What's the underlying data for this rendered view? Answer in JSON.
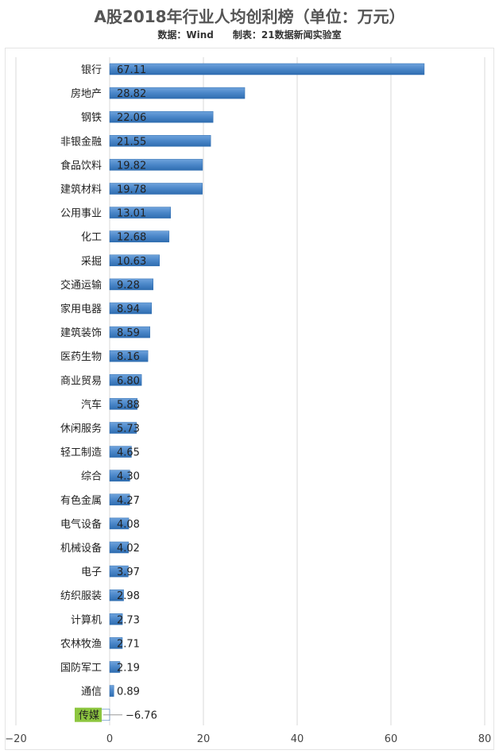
{
  "title": "A股2018年行业人均创利榜（单位：万元）",
  "subtitle": "数据：Wind　　制表：21数据新闻实验室",
  "colors": {
    "bar": "#4a86c8",
    "bar_highlight": "#8dc63f",
    "grid": "#d9d9d9"
  },
  "chart_data": {
    "type": "bar",
    "orientation": "horizontal",
    "title": "A股2018年行业人均创利榜（单位：万元）",
    "xlabel": "",
    "ylabel": "",
    "xlim": [
      -20,
      80
    ],
    "xticks": [
      -20,
      0,
      20,
      40,
      60,
      80
    ],
    "grid": true,
    "categories": [
      "银行",
      "房地产",
      "钢铁",
      "非银金融",
      "食品饮料",
      "建筑材料",
      "公用事业",
      "化工",
      "采掘",
      "交通运输",
      "家用电器",
      "建筑装饰",
      "医药生物",
      "商业贸易",
      "汽车",
      "休闲服务",
      "轻工制造",
      "综合",
      "有色金属",
      "电气设备",
      "机械设备",
      "电子",
      "纺织服装",
      "计算机",
      "农林牧渔",
      "国防军工",
      "通信",
      "传媒"
    ],
    "values": [
      67.11,
      28.82,
      22.06,
      21.55,
      19.82,
      19.78,
      13.01,
      12.68,
      10.63,
      9.28,
      8.94,
      8.59,
      8.16,
      6.8,
      5.88,
      5.73,
      4.65,
      4.3,
      4.27,
      4.08,
      4.02,
      3.97,
      2.98,
      2.73,
      2.71,
      2.19,
      0.89,
      -6.76
    ],
    "value_labels": [
      "67.11",
      "28.82",
      "22.06",
      "21.55",
      "19.82",
      "19.78",
      "13.01",
      "12.68",
      "10.63",
      "9.28",
      "8.94",
      "8.59",
      "8.16",
      "6.80",
      "5.88",
      "5.73",
      "4.65",
      "4.30",
      "4.27",
      "4.08",
      "4.02",
      "3.97",
      "2.98",
      "2.73",
      "2.71",
      "2.19",
      "0.89",
      "−6.76"
    ],
    "highlight_category": "传媒"
  }
}
